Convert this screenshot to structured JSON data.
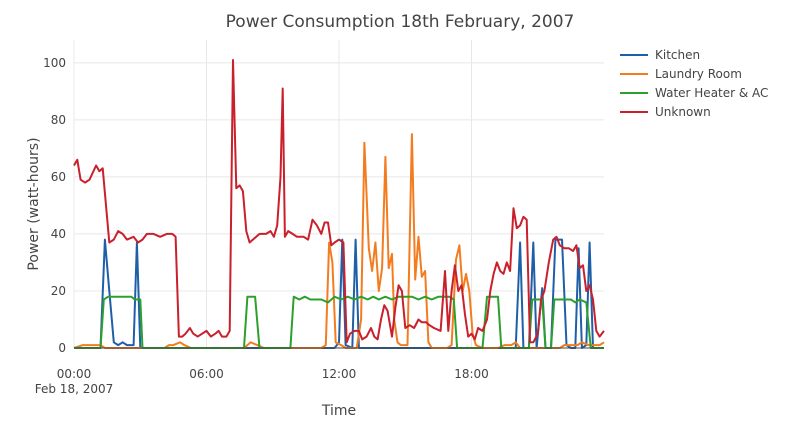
{
  "chart_data": {
    "type": "line",
    "title": "Power Consumption 18th February, 2007",
    "xlabel": "Time",
    "ylabel": "Power (watt-hours)",
    "x_unit": "hours since 00:00 Feb 18, 2007",
    "xlim": [
      0,
      24
    ],
    "ylim": [
      0,
      108
    ],
    "x_ticks": [
      {
        "value": 0,
        "label": "00:00",
        "sublabel": "Feb 18, 2007"
      },
      {
        "value": 6,
        "label": "06:00"
      },
      {
        "value": 12,
        "label": "12:00"
      },
      {
        "value": 18,
        "label": "18:00"
      }
    ],
    "y_ticks": [
      0,
      20,
      40,
      60,
      80,
      100
    ],
    "grid": true,
    "legend_position": "top-right",
    "series": [
      {
        "name": "Kitchen",
        "color": "#1f5fa8",
        "points": [
          [
            0,
            0
          ],
          [
            1.2,
            0
          ],
          [
            1.4,
            38
          ],
          [
            1.6,
            20
          ],
          [
            1.8,
            2
          ],
          [
            2.0,
            1
          ],
          [
            2.2,
            2
          ],
          [
            2.4,
            1
          ],
          [
            2.7,
            1
          ],
          [
            2.85,
            37
          ],
          [
            3.0,
            0
          ],
          [
            11.8,
            0
          ],
          [
            12.0,
            2
          ],
          [
            12.15,
            38
          ],
          [
            12.3,
            1
          ],
          [
            12.6,
            0
          ],
          [
            12.75,
            38
          ],
          [
            12.9,
            0
          ],
          [
            20.0,
            0
          ],
          [
            20.2,
            37
          ],
          [
            20.35,
            0
          ],
          [
            20.6,
            0
          ],
          [
            20.8,
            37
          ],
          [
            20.95,
            0
          ],
          [
            21.2,
            21
          ],
          [
            21.35,
            0
          ],
          [
            21.6,
            0
          ],
          [
            21.8,
            38
          ],
          [
            22.1,
            38
          ],
          [
            22.3,
            1
          ],
          [
            22.5,
            0
          ],
          [
            22.7,
            0
          ],
          [
            22.85,
            35
          ],
          [
            23.0,
            0
          ],
          [
            23.2,
            1
          ],
          [
            23.35,
            37
          ],
          [
            23.5,
            0
          ],
          [
            24,
            0
          ]
        ]
      },
      {
        "name": "Laundry Room",
        "color": "#f47c20",
        "points": [
          [
            0,
            0
          ],
          [
            0.4,
            1
          ],
          [
            1.2,
            1
          ],
          [
            1.4,
            0
          ],
          [
            4.1,
            0
          ],
          [
            4.3,
            1
          ],
          [
            4.5,
            1
          ],
          [
            4.8,
            2
          ],
          [
            5.0,
            1
          ],
          [
            5.3,
            0
          ],
          [
            7.7,
            0
          ],
          [
            8.0,
            2
          ],
          [
            8.3,
            1
          ],
          [
            8.6,
            0
          ],
          [
            11.2,
            0
          ],
          [
            11.4,
            1
          ],
          [
            11.55,
            37
          ],
          [
            11.7,
            30
          ],
          [
            11.85,
            2
          ],
          [
            12.1,
            1
          ],
          [
            12.3,
            0
          ],
          [
            12.8,
            0
          ],
          [
            13.0,
            10
          ],
          [
            13.15,
            72
          ],
          [
            13.35,
            35
          ],
          [
            13.5,
            27
          ],
          [
            13.65,
            37
          ],
          [
            13.8,
            20
          ],
          [
            13.95,
            28
          ],
          [
            14.1,
            67
          ],
          [
            14.25,
            28
          ],
          [
            14.4,
            33
          ],
          [
            14.5,
            10
          ],
          [
            14.65,
            2
          ],
          [
            14.8,
            1
          ],
          [
            15.1,
            1
          ],
          [
            15.3,
            75
          ],
          [
            15.45,
            24
          ],
          [
            15.6,
            39
          ],
          [
            15.75,
            25
          ],
          [
            15.9,
            27
          ],
          [
            16.05,
            2
          ],
          [
            16.2,
            0
          ],
          [
            16.5,
            0
          ],
          [
            16.9,
            0
          ],
          [
            17.1,
            1
          ],
          [
            17.3,
            31
          ],
          [
            17.45,
            36
          ],
          [
            17.6,
            20
          ],
          [
            17.75,
            26
          ],
          [
            17.9,
            20
          ],
          [
            18.05,
            5
          ],
          [
            18.2,
            1
          ],
          [
            18.5,
            0
          ],
          [
            19.2,
            0
          ],
          [
            19.5,
            1
          ],
          [
            19.8,
            1
          ],
          [
            20.0,
            2
          ],
          [
            20.2,
            0
          ],
          [
            21.0,
            0
          ],
          [
            22.0,
            0
          ],
          [
            22.2,
            1
          ],
          [
            22.8,
            1
          ],
          [
            23.0,
            2
          ],
          [
            23.3,
            1
          ],
          [
            23.8,
            1
          ],
          [
            24,
            2
          ]
        ]
      },
      {
        "name": "Water Heater & AC",
        "color": "#2ca02c",
        "points": [
          [
            0,
            0
          ],
          [
            1.2,
            0
          ],
          [
            1.35,
            17
          ],
          [
            1.55,
            18
          ],
          [
            2.6,
            18
          ],
          [
            2.75,
            17
          ],
          [
            3.0,
            17
          ],
          [
            3.1,
            0
          ],
          [
            7.7,
            0
          ],
          [
            7.85,
            18
          ],
          [
            8.2,
            18
          ],
          [
            8.4,
            0
          ],
          [
            9.8,
            0
          ],
          [
            9.95,
            18
          ],
          [
            10.2,
            17
          ],
          [
            10.45,
            18
          ],
          [
            10.7,
            17
          ],
          [
            11.2,
            17
          ],
          [
            11.5,
            16
          ],
          [
            11.8,
            18
          ],
          [
            12.1,
            17
          ],
          [
            12.4,
            18
          ],
          [
            12.7,
            17
          ],
          [
            13.0,
            18
          ],
          [
            13.3,
            17
          ],
          [
            13.55,
            18
          ],
          [
            13.8,
            17
          ],
          [
            14.1,
            18
          ],
          [
            14.4,
            17
          ],
          [
            14.7,
            18
          ],
          [
            15.0,
            18
          ],
          [
            15.3,
            18
          ],
          [
            15.6,
            17
          ],
          [
            15.9,
            18
          ],
          [
            16.2,
            17
          ],
          [
            16.5,
            18
          ],
          [
            17.0,
            18
          ],
          [
            17.2,
            17
          ],
          [
            17.35,
            0
          ],
          [
            18.5,
            0
          ],
          [
            18.7,
            18
          ],
          [
            19.2,
            18
          ],
          [
            19.35,
            0
          ],
          [
            20.6,
            0
          ],
          [
            20.75,
            17
          ],
          [
            21.2,
            17
          ],
          [
            21.35,
            0
          ],
          [
            21.6,
            0
          ],
          [
            21.75,
            17
          ],
          [
            22.5,
            17
          ],
          [
            22.7,
            16
          ],
          [
            22.9,
            17
          ],
          [
            23.2,
            16
          ],
          [
            23.4,
            0
          ],
          [
            24,
            0
          ]
        ]
      },
      {
        "name": "Unknown",
        "color": "#c9202c",
        "points": [
          [
            0,
            64
          ],
          [
            0.15,
            66
          ],
          [
            0.3,
            59
          ],
          [
            0.5,
            58
          ],
          [
            0.7,
            59
          ],
          [
            1.0,
            64
          ],
          [
            1.15,
            62
          ],
          [
            1.3,
            63
          ],
          [
            1.45,
            50
          ],
          [
            1.6,
            37
          ],
          [
            1.8,
            38
          ],
          [
            2.0,
            41
          ],
          [
            2.2,
            40
          ],
          [
            2.4,
            38
          ],
          [
            2.7,
            39
          ],
          [
            2.9,
            37
          ],
          [
            3.1,
            38
          ],
          [
            3.3,
            40
          ],
          [
            3.6,
            40
          ],
          [
            3.9,
            39
          ],
          [
            4.2,
            40
          ],
          [
            4.45,
            40
          ],
          [
            4.6,
            39
          ],
          [
            4.75,
            4
          ],
          [
            4.9,
            4
          ],
          [
            5.05,
            5
          ],
          [
            5.25,
            7
          ],
          [
            5.4,
            5
          ],
          [
            5.6,
            4
          ],
          [
            5.8,
            5
          ],
          [
            6.0,
            6
          ],
          [
            6.2,
            4
          ],
          [
            6.4,
            5
          ],
          [
            6.55,
            6
          ],
          [
            6.7,
            4
          ],
          [
            6.9,
            4
          ],
          [
            7.05,
            6
          ],
          [
            7.2,
            101
          ],
          [
            7.35,
            56
          ],
          [
            7.5,
            57
          ],
          [
            7.65,
            55
          ],
          [
            7.8,
            41
          ],
          [
            7.95,
            37
          ],
          [
            8.1,
            38
          ],
          [
            8.4,
            40
          ],
          [
            8.7,
            40
          ],
          [
            8.9,
            41
          ],
          [
            9.05,
            39
          ],
          [
            9.2,
            43
          ],
          [
            9.35,
            60
          ],
          [
            9.45,
            91
          ],
          [
            9.55,
            39
          ],
          [
            9.7,
            41
          ],
          [
            9.9,
            40
          ],
          [
            10.1,
            39
          ],
          [
            10.4,
            39
          ],
          [
            10.6,
            38
          ],
          [
            10.8,
            45
          ],
          [
            11.0,
            43
          ],
          [
            11.2,
            40
          ],
          [
            11.35,
            44
          ],
          [
            11.5,
            44
          ],
          [
            11.65,
            36
          ],
          [
            11.8,
            37
          ],
          [
            12.0,
            38
          ],
          [
            12.2,
            37
          ],
          [
            12.35,
            2
          ],
          [
            12.5,
            5
          ],
          [
            12.7,
            6
          ],
          [
            12.9,
            6
          ],
          [
            13.05,
            3
          ],
          [
            13.25,
            4
          ],
          [
            13.45,
            7
          ],
          [
            13.6,
            4
          ],
          [
            13.75,
            3
          ],
          [
            13.9,
            10
          ],
          [
            14.05,
            15
          ],
          [
            14.2,
            13
          ],
          [
            14.4,
            4
          ],
          [
            14.55,
            14
          ],
          [
            14.7,
            22
          ],
          [
            14.85,
            20
          ],
          [
            15.0,
            7
          ],
          [
            15.2,
            8
          ],
          [
            15.4,
            7
          ],
          [
            15.6,
            10
          ],
          [
            15.75,
            9
          ],
          [
            15.95,
            9
          ],
          [
            16.1,
            8
          ],
          [
            16.3,
            7
          ],
          [
            16.6,
            6
          ],
          [
            16.8,
            27
          ],
          [
            16.95,
            6
          ],
          [
            17.1,
            20
          ],
          [
            17.25,
            29
          ],
          [
            17.4,
            20
          ],
          [
            17.55,
            22
          ],
          [
            17.7,
            12
          ],
          [
            17.85,
            4
          ],
          [
            18.0,
            5
          ],
          [
            18.15,
            3
          ],
          [
            18.3,
            7
          ],
          [
            18.5,
            6
          ],
          [
            18.7,
            10
          ],
          [
            18.85,
            20
          ],
          [
            19.0,
            26
          ],
          [
            19.15,
            30
          ],
          [
            19.3,
            27
          ],
          [
            19.45,
            26
          ],
          [
            19.6,
            30
          ],
          [
            19.75,
            27
          ],
          [
            19.9,
            49
          ],
          [
            20.05,
            42
          ],
          [
            20.2,
            43
          ],
          [
            20.35,
            46
          ],
          [
            20.5,
            45
          ],
          [
            20.65,
            2
          ],
          [
            20.8,
            2
          ],
          [
            21.0,
            5
          ],
          [
            21.15,
            17
          ],
          [
            21.3,
            20
          ],
          [
            21.5,
            30
          ],
          [
            21.7,
            38
          ],
          [
            21.85,
            39
          ],
          [
            22.0,
            36
          ],
          [
            22.2,
            35
          ],
          [
            22.4,
            35
          ],
          [
            22.6,
            34
          ],
          [
            22.75,
            36
          ],
          [
            22.9,
            28
          ],
          [
            23.05,
            29
          ],
          [
            23.2,
            20
          ],
          [
            23.35,
            22
          ],
          [
            23.5,
            17
          ],
          [
            23.65,
            6
          ],
          [
            23.8,
            4
          ],
          [
            24,
            6
          ]
        ]
      }
    ]
  }
}
